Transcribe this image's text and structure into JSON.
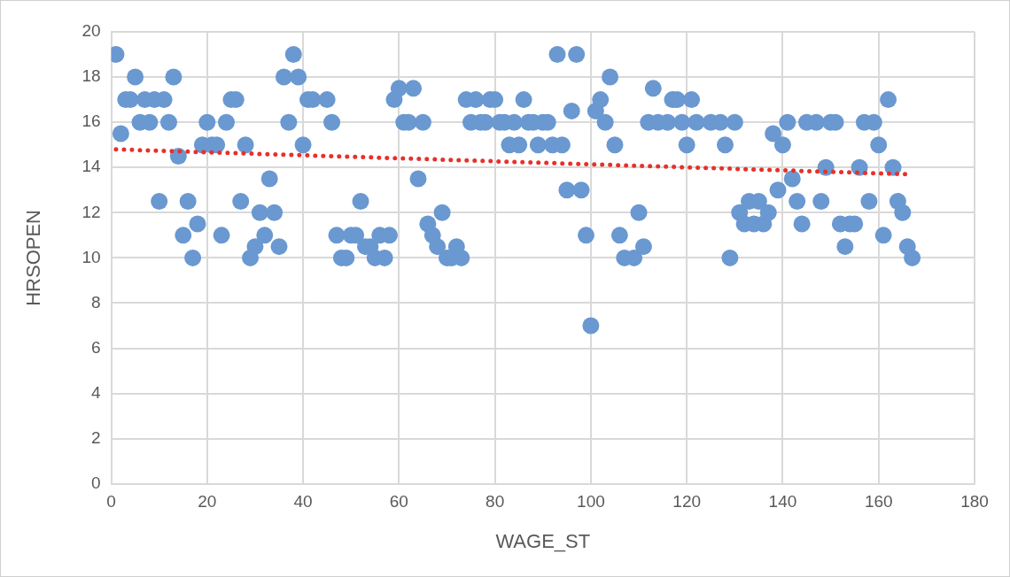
{
  "chart_data": {
    "type": "scatter",
    "xlabel": "WAGE_ST",
    "ylabel": "HRSOPEN",
    "xlim": [
      0,
      180
    ],
    "xticks": [
      0,
      20,
      40,
      60,
      80,
      100,
      120,
      140,
      160,
      180
    ],
    "ylim": [
      0,
      20
    ],
    "yticks": [
      0,
      2,
      4,
      6,
      8,
      10,
      12,
      14,
      16,
      18,
      20
    ],
    "grid": true,
    "legend": false,
    "marker": "circle",
    "series": [
      {
        "color": "#6a98d0",
        "x": [
          1,
          2,
          3,
          4,
          5,
          6,
          7,
          8,
          9,
          10,
          11,
          12,
          13,
          14,
          15,
          16,
          17,
          18,
          19,
          20,
          21,
          22,
          23,
          24,
          25,
          26,
          27,
          28,
          29,
          30,
          31,
          32,
          33,
          34,
          35,
          36,
          37,
          38,
          39,
          40,
          41,
          42,
          43,
          44,
          45,
          46,
          47,
          48,
          49,
          50,
          51,
          52,
          53,
          54,
          55,
          56,
          57,
          58,
          59,
          60,
          61,
          62,
          63,
          64,
          65,
          66,
          67,
          68,
          69,
          70,
          71,
          72,
          73,
          74,
          75,
          76,
          77,
          78,
          79,
          80,
          81,
          82,
          83,
          84,
          85,
          86,
          87,
          88,
          89,
          90,
          91,
          92,
          93,
          94,
          95,
          96,
          97,
          98,
          99,
          100,
          101,
          102,
          103,
          104,
          105,
          106,
          107,
          108,
          109,
          110,
          111,
          112,
          113,
          114,
          115,
          116,
          117,
          118,
          119,
          120,
          121,
          122,
          123,
          124,
          125,
          126,
          127,
          128,
          129,
          130,
          131,
          132,
          133,
          134,
          135,
          136,
          137,
          138,
          139,
          140,
          141,
          142,
          143,
          144,
          145,
          146,
          147,
          148,
          149,
          150,
          151,
          152,
          153,
          154,
          155,
          156,
          157,
          158,
          159,
          160,
          161,
          162,
          163,
          164,
          165,
          166,
          167
        ],
        "values": [
          19,
          15.5,
          17,
          17,
          18,
          16,
          17,
          16,
          17,
          12.5,
          17,
          16,
          18,
          14.5,
          11,
          12.5,
          10,
          11.5,
          15,
          16,
          15,
          15,
          11,
          16,
          17,
          17,
          12.5,
          15,
          10,
          10.5,
          12,
          11,
          13.5,
          12,
          10.5,
          18,
          16,
          19,
          18,
          15,
          17,
          17,
          null,
          null,
          17,
          16,
          11,
          10,
          10,
          11,
          11,
          12.5,
          10.5,
          10.5,
          10,
          11,
          10,
          11,
          17,
          17.5,
          16,
          16,
          17.5,
          13.5,
          16,
          11.5,
          11,
          10.5,
          12,
          10,
          10,
          10.5,
          10,
          17,
          16,
          17,
          16,
          16,
          17,
          17,
          16,
          16,
          15,
          16,
          15,
          17,
          16,
          16,
          15,
          16,
          16,
          15,
          19,
          15,
          13,
          16.5,
          19,
          13,
          11,
          7,
          16.5,
          17,
          16,
          18,
          15,
          11,
          10,
          null,
          10,
          12,
          10.5,
          16,
          17.5,
          16,
          null,
          16,
          17,
          17,
          16,
          15,
          17,
          16,
          null,
          null,
          16,
          null,
          16,
          15,
          10,
          16,
          12,
          11.5,
          12.5,
          11.5,
          12.5,
          11.5,
          12,
          15.5,
          13,
          15,
          16,
          13.5,
          12.5,
          11.5,
          16,
          null,
          16,
          12.5,
          14,
          16,
          16,
          11.5,
          10.5,
          11.5,
          11.5,
          14,
          16,
          12.5,
          16,
          15,
          11,
          17,
          14,
          12.5,
          12,
          10.5,
          10
        ]
      },
      {
        "type": "line",
        "color": "#e8302a",
        "line_style": "dotted",
        "marker": "none",
        "x": [
          1,
          166
        ],
        "values": [
          14.8,
          13.7
        ]
      }
    ]
  }
}
